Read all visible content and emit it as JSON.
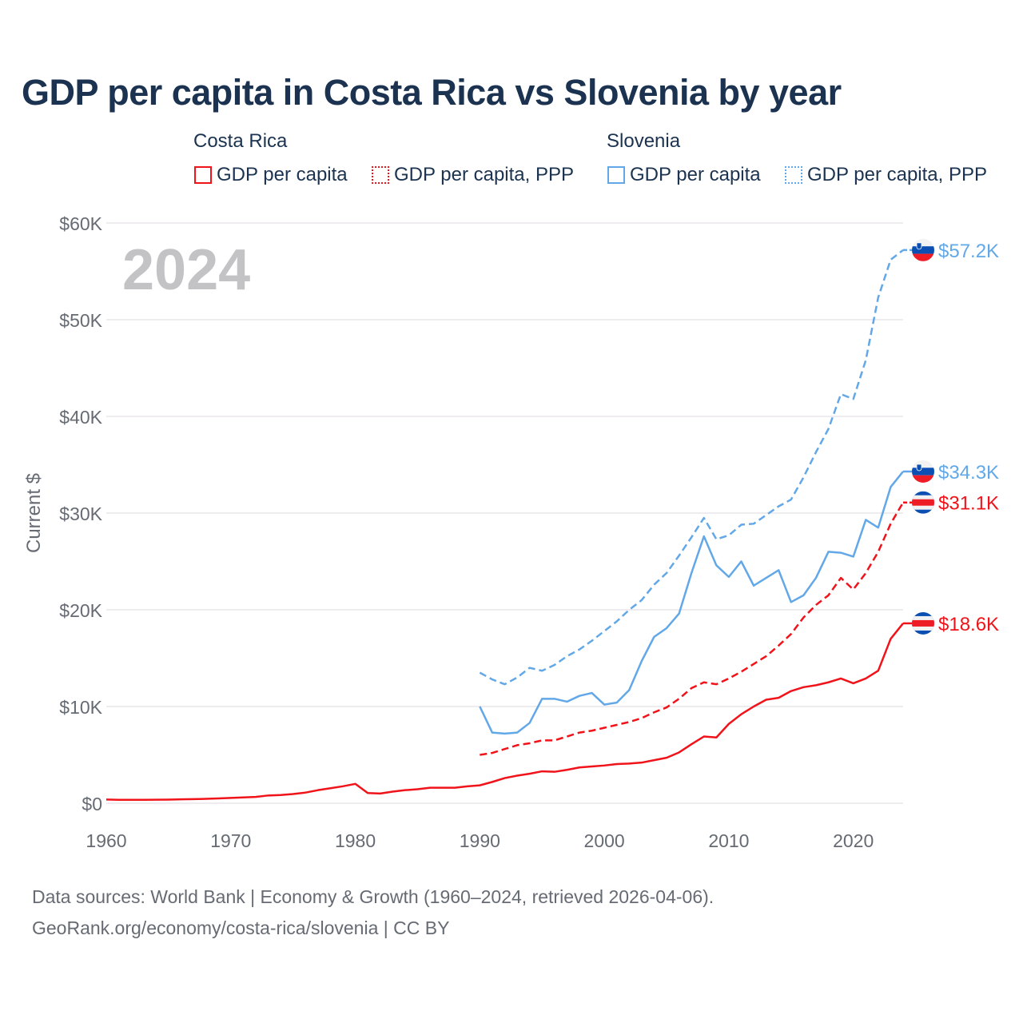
{
  "chart_data": {
    "type": "line",
    "title": "GDP per capita in Costa Rica vs Slovenia by year",
    "ylabel": "Current $",
    "xlabel": "",
    "xlim": [
      1960,
      2024
    ],
    "ylim": [
      0,
      60000
    ],
    "x_ticks": [
      "1960",
      "1970",
      "1980",
      "1990",
      "2000",
      "2010",
      "2020"
    ],
    "y_ticks": [
      "$0",
      "$10K",
      "$20K",
      "$30K",
      "$40K",
      "$50K",
      "$60K"
    ],
    "grid": true,
    "year_label": "2024",
    "legend": {
      "groups": [
        {
          "name": "Costa Rica",
          "items": [
            "GDP per capita",
            "GDP per capita, PPP"
          ]
        },
        {
          "name": "Slovenia",
          "items": [
            "GDP per capita",
            "GDP per capita, PPP"
          ]
        }
      ],
      "placement": "top"
    },
    "series": [
      {
        "name": "Costa Rica GDP per capita",
        "country": "Costa Rica",
        "color": "#f0131a",
        "dash": false,
        "start": 1960,
        "end_label": "$18.6K",
        "values": [
          380,
          350,
          350,
          350,
          360,
          370,
          400,
          420,
          450,
          500,
          550,
          600,
          650,
          800,
          850,
          950,
          1100,
          1350,
          1550,
          1750,
          2000,
          1050,
          1000,
          1200,
          1350,
          1450,
          1600,
          1600,
          1600,
          1750,
          1850,
          2200,
          2600,
          2850,
          3050,
          3300,
          3250,
          3450,
          3700,
          3800,
          3900,
          4050,
          4100,
          4200,
          4450,
          4700,
          5250,
          6100,
          6900,
          6800,
          8200,
          9200,
          10000,
          10700,
          10900,
          11600,
          12000,
          12200,
          12500,
          12900,
          12400,
          12900,
          13700,
          17000,
          18600
        ]
      },
      {
        "name": "Costa Rica GDP per capita, PPP",
        "country": "Costa Rica",
        "color": "#f0131a",
        "dash": true,
        "start": 1990,
        "end_label": "$31.1K",
        "values": [
          5000,
          5200,
          5600,
          6000,
          6200,
          6500,
          6500,
          6900,
          7300,
          7500,
          7800,
          8100,
          8400,
          8800,
          9400,
          9900,
          10800,
          11900,
          12500,
          12300,
          12900,
          13600,
          14400,
          15200,
          16300,
          17500,
          19200,
          20500,
          21500,
          23300,
          22100,
          23800,
          26000,
          28900,
          31100
        ]
      },
      {
        "name": "Slovenia GDP per capita",
        "country": "Slovenia",
        "color": "#62a8e8",
        "dash": false,
        "start": 1990,
        "end_label": "$34.3K",
        "values": [
          10000,
          7300,
          7200,
          7300,
          8300,
          10800,
          10800,
          10500,
          11100,
          11400,
          10200,
          10400,
          11700,
          14700,
          17200,
          18100,
          19600,
          23800,
          27600,
          24600,
          23400,
          25000,
          22500,
          23300,
          24100,
          20800,
          21500,
          23300,
          26000,
          25900,
          25500,
          29300,
          28500,
          32700,
          34300
        ]
      },
      {
        "name": "Slovenia GDP per capita, PPP",
        "country": "Slovenia",
        "color": "#62a8e8",
        "dash": true,
        "start": 1990,
        "end_label": "$57.2K",
        "values": [
          13500,
          12800,
          12300,
          13000,
          14000,
          13700,
          14300,
          15200,
          15900,
          16800,
          17800,
          18800,
          20000,
          21000,
          22600,
          23800,
          25600,
          27500,
          29500,
          27300,
          27700,
          28800,
          28900,
          29800,
          30700,
          31400,
          33700,
          36300,
          38700,
          42300,
          41800,
          45800,
          52300,
          56200,
          57200
        ]
      }
    ]
  },
  "source": {
    "line1": "Data sources: World Bank | Economy & Growth (1960–2024, retrieved 2026-04-06).",
    "line2": "GeoRank.org/economy/costa-rica/slovenia | CC BY"
  }
}
